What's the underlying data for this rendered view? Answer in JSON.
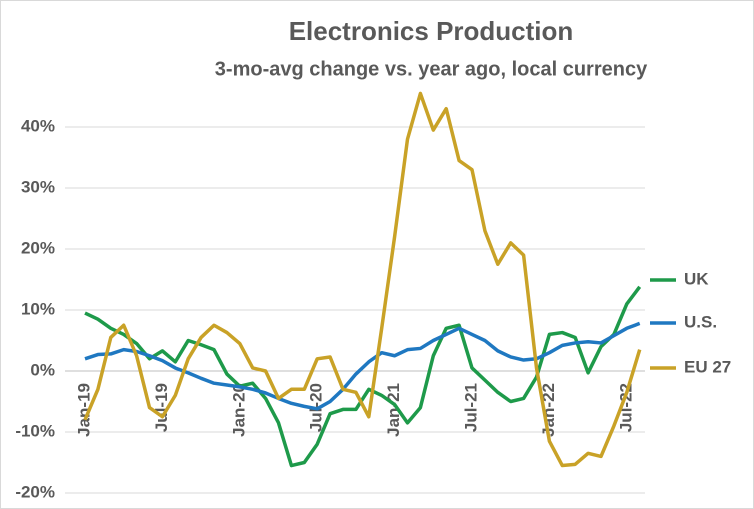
{
  "chart_data": {
    "type": "line",
    "title": "Electronics Production",
    "subtitle": "3-mo-avg change vs. year ago, local currency",
    "categories": [
      "Jan-19",
      null,
      null,
      null,
      null,
      null,
      "Jul-19",
      null,
      null,
      null,
      null,
      null,
      "Jan-20",
      null,
      null,
      null,
      null,
      null,
      "Jul-20",
      null,
      null,
      null,
      null,
      null,
      "Jan-21",
      null,
      null,
      null,
      null,
      null,
      "Jul-21",
      null,
      null,
      null,
      null,
      null,
      "Jan-22",
      null,
      null,
      null,
      null,
      null,
      "Jul-22",
      null
    ],
    "series": [
      {
        "name": "UK",
        "color": "#1e9a4a",
        "values": [
          9.5,
          8.5,
          7,
          6,
          4.5,
          2,
          3.3,
          1.5,
          5,
          4.3,
          3.5,
          -0.5,
          -2.5,
          -2,
          -4.5,
          -8.5,
          -15.5,
          -15,
          -12,
          -7,
          -6.3,
          -6.3,
          -3,
          -4,
          -5.5,
          -8.5,
          -6,
          2.5,
          7,
          7.5,
          0.5,
          -1.5,
          -3.5,
          -5,
          -4.5,
          -1,
          6,
          6.3,
          5.5,
          -0.3,
          4,
          6,
          11,
          13.8
        ]
      },
      {
        "name": "U.S.",
        "color": "#1f78c1",
        "values": [
          2,
          2.7,
          2.8,
          3.5,
          3.2,
          2.5,
          1.7,
          0.5,
          -0.3,
          -1.2,
          -2,
          -2.3,
          -2.6,
          -3,
          -3.6,
          -4.5,
          -5.3,
          -5.8,
          -6.2,
          -5,
          -3,
          -0.5,
          1.5,
          3,
          2.5,
          3.5,
          3.7,
          5,
          6,
          7,
          6,
          5,
          3.3,
          2.3,
          1.8,
          2,
          3,
          4.2,
          4.6,
          4.8,
          4.6,
          5.8,
          7,
          7.8
        ]
      },
      {
        "name": "EU 27",
        "color": "#c9a227",
        "values": [
          -8,
          -3,
          5.5,
          7.5,
          2.5,
          -6,
          -7.5,
          -4,
          2,
          5.5,
          7.5,
          6.3,
          4.5,
          0.5,
          0,
          -4.5,
          -3,
          -3,
          2,
          2.3,
          -3,
          -3.5,
          -7.5,
          7,
          22,
          38,
          45.5,
          39.5,
          43,
          34.5,
          33,
          23,
          17.5,
          21,
          19,
          0.5,
          -11.5,
          -15.5,
          -15.3,
          -13.5,
          -14,
          -9,
          -3.5,
          3.5
        ]
      }
    ],
    "ylim": [
      -20,
      40
    ],
    "yticks": [
      {
        "value": -20,
        "label": "-20%"
      },
      {
        "value": -10,
        "label": "-10%"
      },
      {
        "value": 0,
        "label": "0%"
      },
      {
        "value": 10,
        "label": "10%"
      },
      {
        "value": 20,
        "label": "20%"
      },
      {
        "value": 30,
        "label": "30%"
      },
      {
        "value": 40,
        "label": "40%"
      }
    ],
    "grid": true
  }
}
